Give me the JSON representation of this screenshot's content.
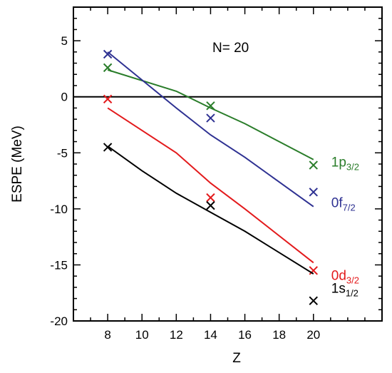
{
  "chart_data": {
    "type": "line",
    "title": "",
    "xlabel": "Z",
    "ylabel": "ESPE (MeV)",
    "annotation": "N= 20",
    "xlim": [
      6,
      24
    ],
    "ylim": [
      -20,
      8
    ],
    "xticks": [
      8,
      10,
      12,
      14,
      16,
      18,
      20
    ],
    "yticks": [
      5,
      0,
      -5,
      -10,
      -15,
      -20
    ],
    "zero_line": true,
    "series": [
      {
        "name": "1p3/2",
        "label_main": "1p",
        "label_sub": "3/2",
        "color": "#2a7d2a",
        "line": [
          [
            8,
            2.4
          ],
          [
            12,
            0.5
          ],
          [
            14,
            -1.0
          ],
          [
            16,
            -2.4
          ],
          [
            20,
            -5.6
          ]
        ],
        "markers": [
          [
            8,
            2.6
          ],
          [
            14,
            -0.8
          ],
          [
            20,
            -6.1
          ]
        ]
      },
      {
        "name": "0f7/2",
        "label_main": "0f",
        "label_sub": "7/2",
        "color": "#2e3192",
        "line": [
          [
            8,
            4.0
          ],
          [
            10,
            1.5
          ],
          [
            12,
            -1.0
          ],
          [
            14,
            -3.4
          ],
          [
            16,
            -5.4
          ],
          [
            20,
            -9.8
          ]
        ],
        "markers": [
          [
            8,
            3.8
          ],
          [
            14,
            -1.9
          ],
          [
            20,
            -8.5
          ]
        ]
      },
      {
        "name": "0d3/2",
        "label_main": "0d",
        "label_sub": "3/2",
        "color": "#e31a1c",
        "line": [
          [
            8,
            -1.0
          ],
          [
            12,
            -5.0
          ],
          [
            14,
            -7.7
          ],
          [
            16,
            -10.0
          ],
          [
            20,
            -14.8
          ]
        ],
        "markers": [
          [
            8,
            -0.2
          ],
          [
            14,
            -9.0
          ],
          [
            20,
            -15.5
          ]
        ]
      },
      {
        "name": "1s1/2",
        "label_main": "1s",
        "label_sub": "1/2",
        "color": "#000000",
        "line": [
          [
            8,
            -4.4
          ],
          [
            10,
            -6.6
          ],
          [
            12,
            -8.6
          ],
          [
            14,
            -10.3
          ],
          [
            16,
            -12.0
          ],
          [
            20,
            -15.8
          ]
        ],
        "markers": [
          [
            8,
            -4.5
          ],
          [
            14,
            -9.7
          ],
          [
            20,
            -18.2
          ]
        ]
      }
    ]
  }
}
